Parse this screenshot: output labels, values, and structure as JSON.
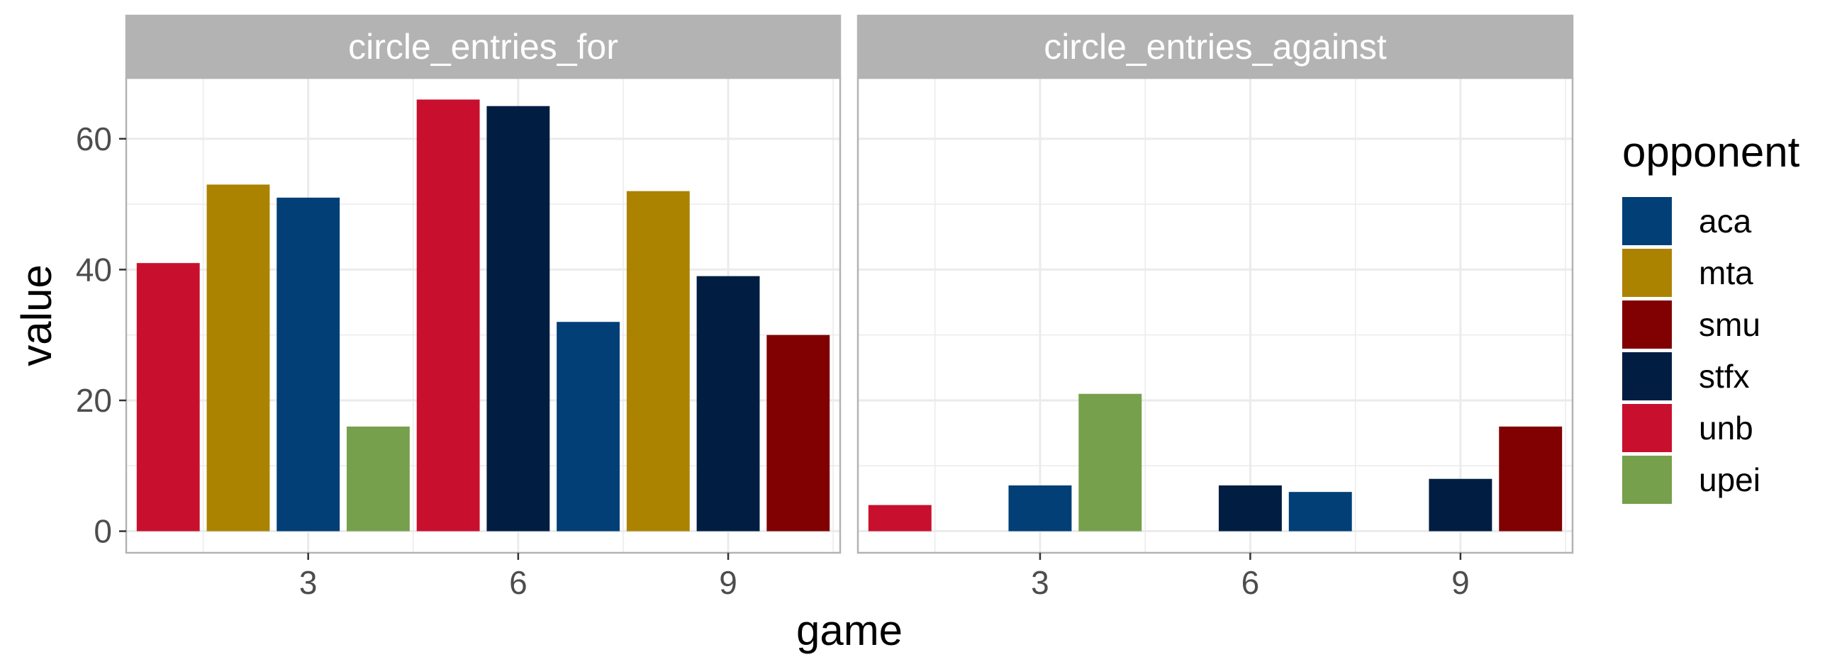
{
  "chart_data": {
    "type": "bar",
    "facets": [
      {
        "title": "circle_entries_for",
        "bars": [
          {
            "game": 1,
            "value": 41,
            "opponent": "unb"
          },
          {
            "game": 2,
            "value": 53,
            "opponent": "mta"
          },
          {
            "game": 3,
            "value": 51,
            "opponent": "aca"
          },
          {
            "game": 4,
            "value": 16,
            "opponent": "upei"
          },
          {
            "game": 5,
            "value": 66,
            "opponent": "unb"
          },
          {
            "game": 6,
            "value": 65,
            "opponent": "stfx"
          },
          {
            "game": 7,
            "value": 32,
            "opponent": "aca"
          },
          {
            "game": 8,
            "value": 52,
            "opponent": "mta"
          },
          {
            "game": 9,
            "value": 39,
            "opponent": "stfx"
          },
          {
            "game": 10,
            "value": 30,
            "opponent": "smu"
          }
        ]
      },
      {
        "title": "circle_entries_against",
        "bars": [
          {
            "game": 1,
            "value": 4,
            "opponent": "unb"
          },
          {
            "game": 2,
            "value": 0,
            "opponent": "mta"
          },
          {
            "game": 3,
            "value": 7,
            "opponent": "aca"
          },
          {
            "game": 4,
            "value": 21,
            "opponent": "upei"
          },
          {
            "game": 5,
            "value": 0,
            "opponent": "unb"
          },
          {
            "game": 6,
            "value": 7,
            "opponent": "stfx"
          },
          {
            "game": 7,
            "value": 6,
            "opponent": "aca"
          },
          {
            "game": 8,
            "value": 0,
            "opponent": "mta"
          },
          {
            "game": 9,
            "value": 8,
            "opponent": "stfx"
          },
          {
            "game": 10,
            "value": 16,
            "opponent": "smu"
          }
        ]
      }
    ],
    "x_ticks": [
      "3",
      "6",
      "9"
    ],
    "x_tick_values": [
      3,
      6,
      9
    ],
    "y_ticks": [
      "0",
      "20",
      "40",
      "60"
    ],
    "y_tick_values": [
      0,
      20,
      40,
      60
    ],
    "xlim": [
      0.4,
      10.6
    ],
    "ylim": [
      -3.3,
      69.3
    ],
    "xlabel": "game",
    "ylabel": "value",
    "grid": true,
    "legend": {
      "title": "opponent",
      "position": "right",
      "entries": [
        {
          "label": "aca",
          "color": "#013F76"
        },
        {
          "label": "mta",
          "color": "#AC8300"
        },
        {
          "label": "smu",
          "color": "#810002"
        },
        {
          "label": "stfx",
          "color": "#011E42"
        },
        {
          "label": "unb",
          "color": "#C8102E"
        },
        {
          "label": "upei",
          "color": "#76A04B"
        }
      ]
    },
    "strip_fill": "#B3B3B3",
    "panel_border": "#B3B3B3",
    "grid_color": "#EBEBEB"
  }
}
